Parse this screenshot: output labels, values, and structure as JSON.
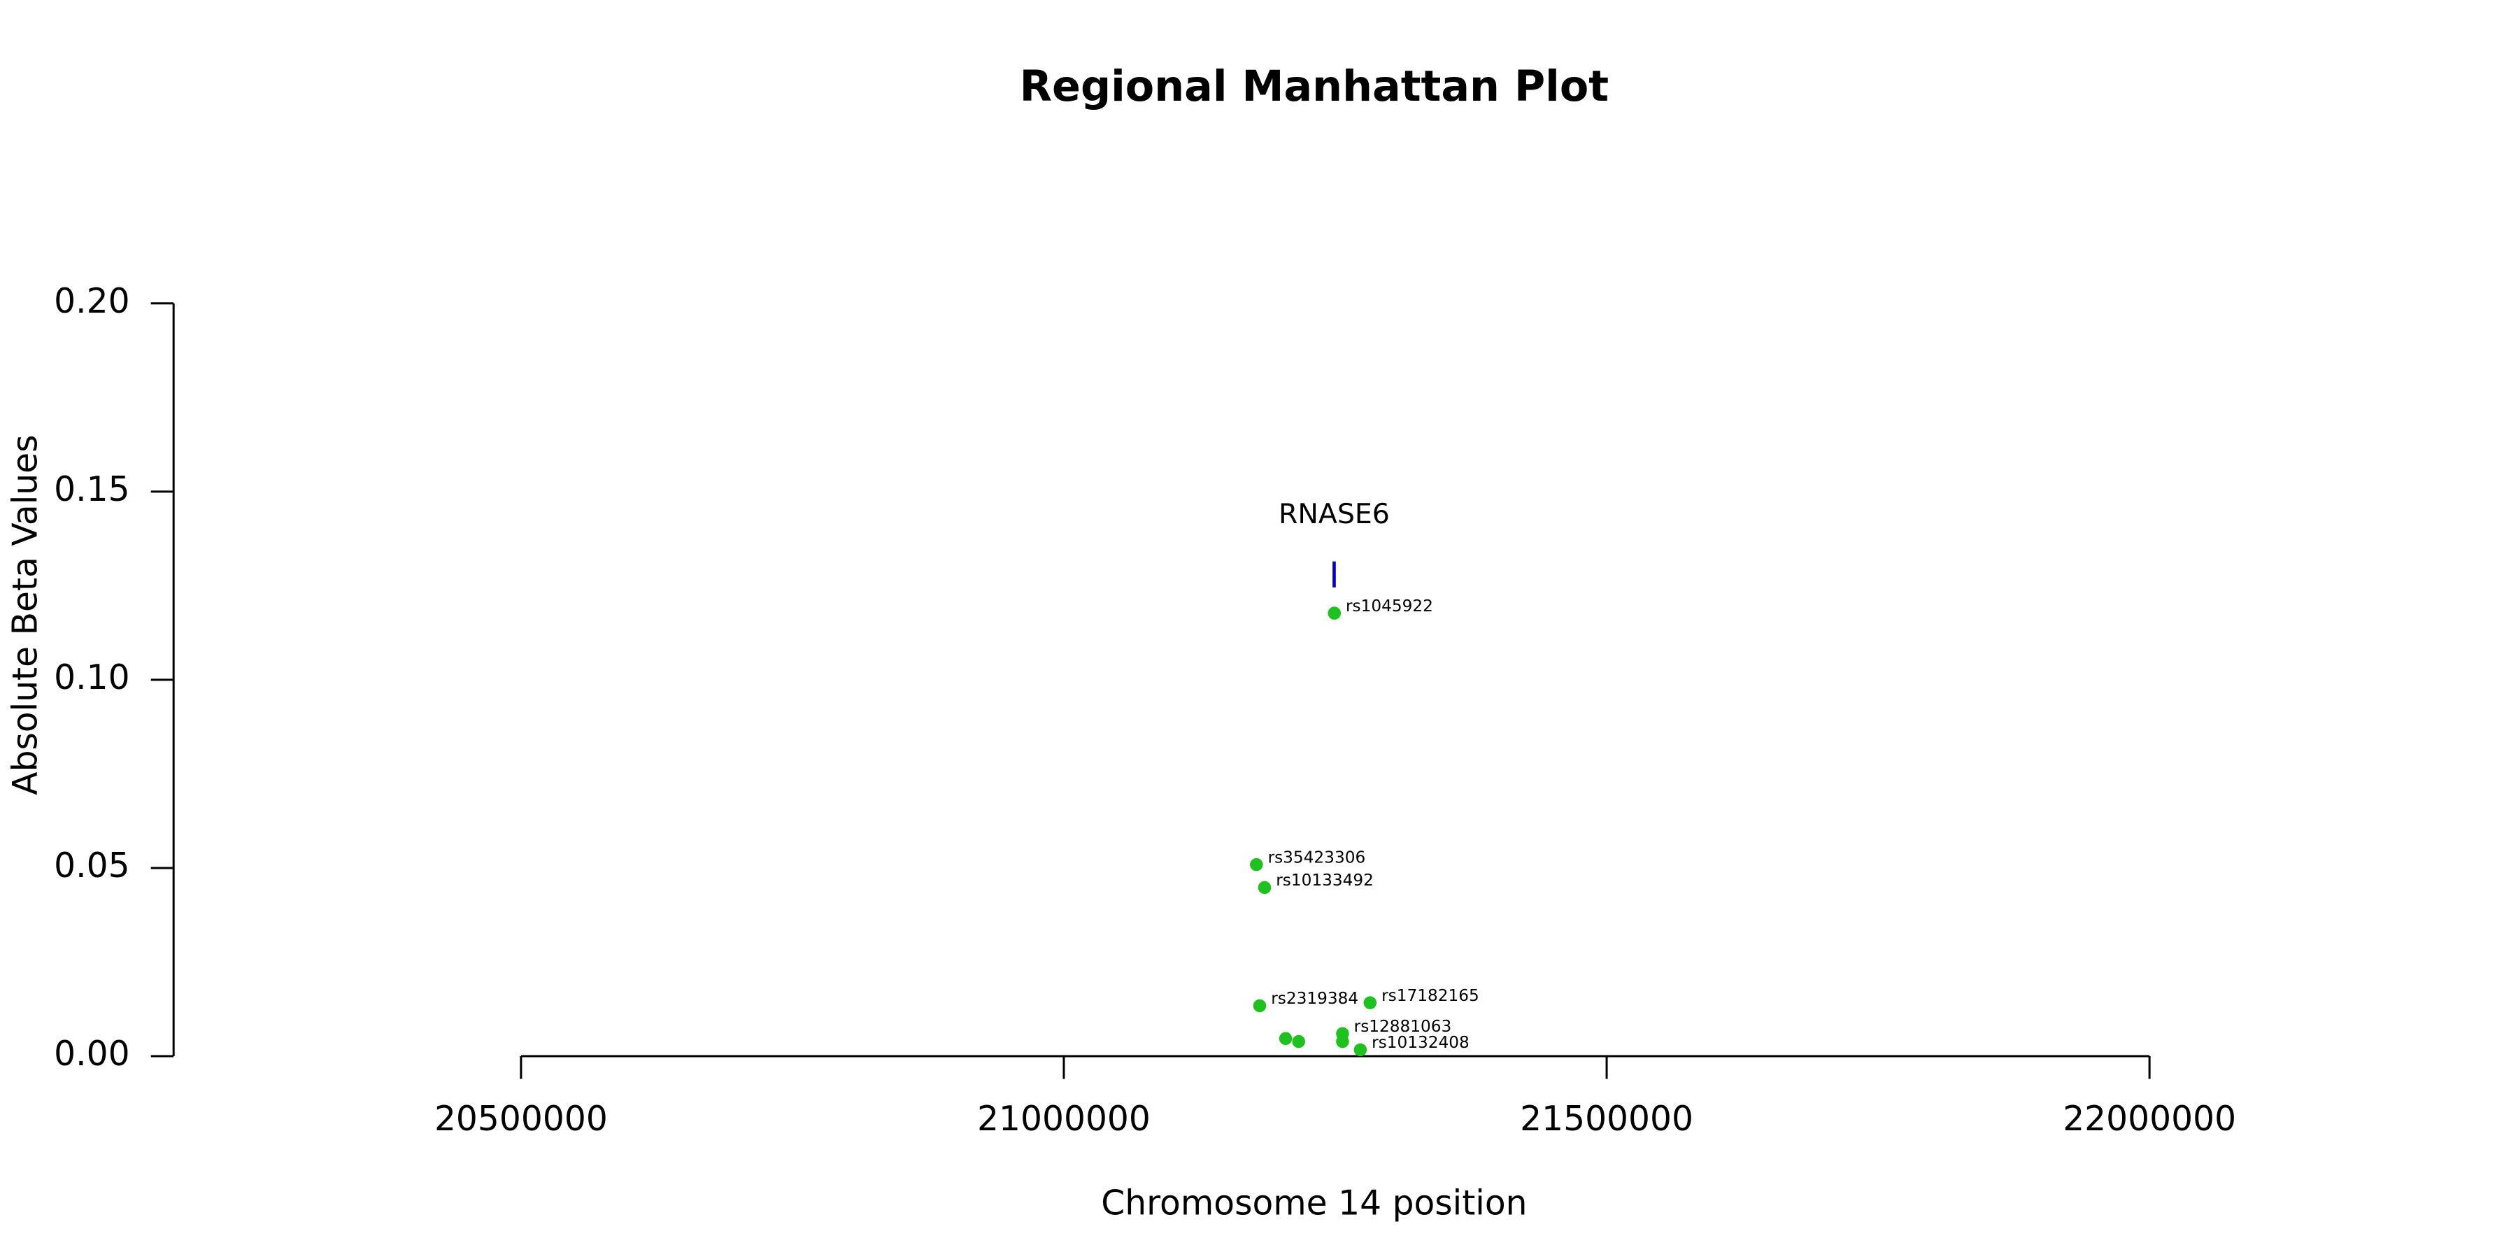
{
  "chart_data": {
    "type": "scatter",
    "title": "Regional Manhattan Plot",
    "x_label": "Chromosome 14 position",
    "y_label": "Absolute Beta Values",
    "color": "#1fc11f",
    "x": [
      21249200,
      21177400,
      21184900,
      21180400,
      21282100,
      21256700,
      21204300,
      21216300,
      21256700,
      21273100
    ],
    "values": [
      0.1177,
      0.0509,
      0.0448,
      0.0134,
      0.0142,
      0.006,
      0.0047,
      0.0039,
      0.0039,
      0.0017
    ],
    "labels": [
      "rs1045922",
      "rs35423306",
      "rs10133492",
      "rs2319384",
      "rs17182165",
      "rs12881063",
      null,
      null,
      null,
      "rs10132408"
    ],
    "gene": {
      "label": "RNASE6",
      "x": 21249000,
      "y": 0.128,
      "color": "#0000cc"
    },
    "xlim": [
      20180000,
      22320000
    ],
    "ylim": [
      0,
      0.2
    ],
    "xticks": [
      20500000,
      21000000,
      21500000,
      22000000
    ],
    "yticks": [
      {
        "value": 0,
        "label": "0.00"
      },
      0.05,
      {
        "value": 0.1,
        "label": "0.10"
      },
      0.15,
      {
        "value": 0.2,
        "label": "0.20"
      }
    ]
  }
}
